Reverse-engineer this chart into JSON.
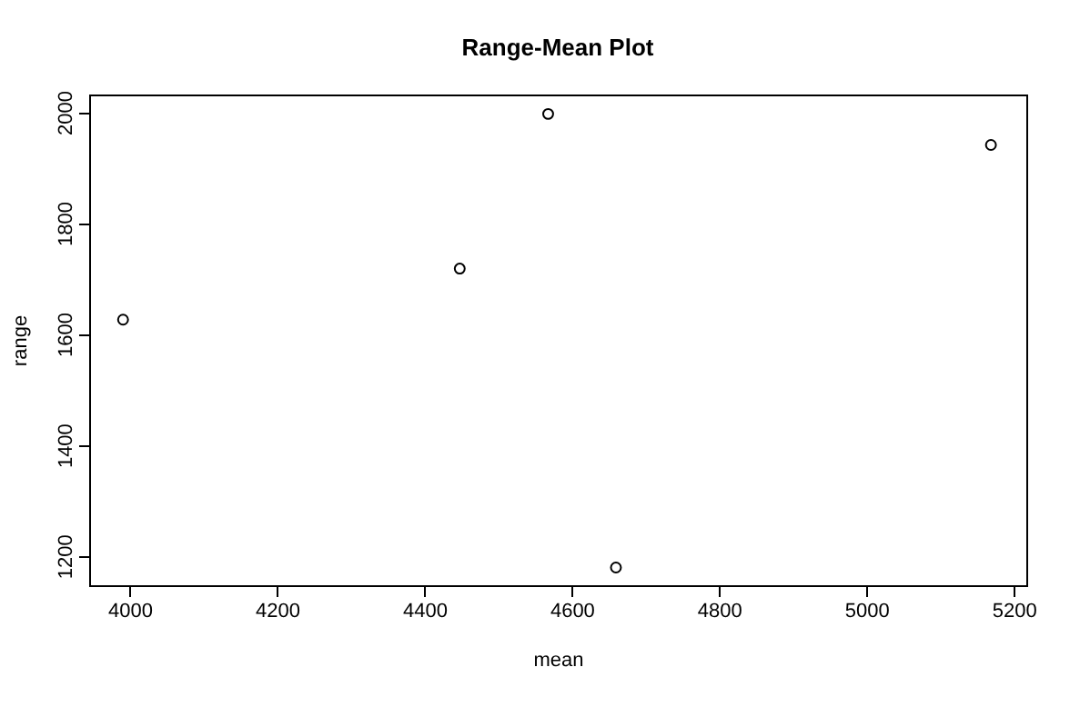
{
  "chart_data": {
    "type": "scatter",
    "title": "Range-Mean Plot",
    "xlabel": "mean",
    "ylabel": "range",
    "x": [
      3991,
      4448,
      4568,
      4660,
      5169
    ],
    "series": [
      {
        "color": "#000000",
        "values": [
          1626,
          1718,
          1997,
          1179,
          1941
        ]
      }
    ],
    "xlim": [
      3945,
      5217
    ],
    "ylim": [
      1147,
      2032
    ],
    "xticks": [
      4000,
      4200,
      4400,
      4600,
      4800,
      5000,
      5200
    ],
    "yticks": [
      1200,
      1400,
      1600,
      1800,
      2000
    ],
    "marker": "circle",
    "grid": false
  }
}
